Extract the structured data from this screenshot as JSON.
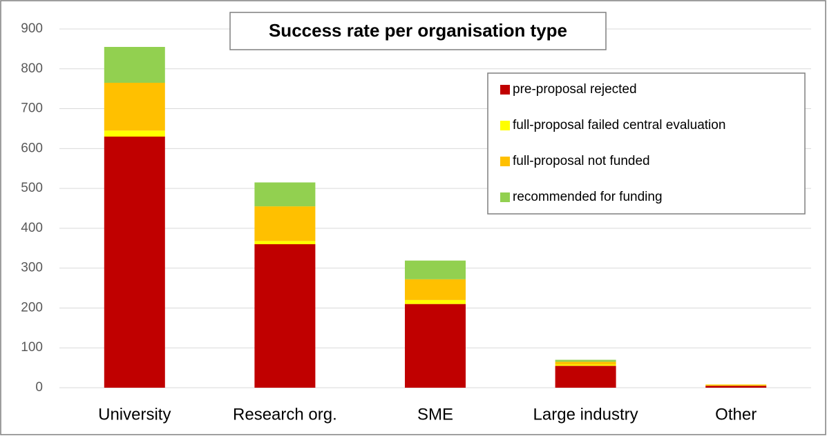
{
  "chart_data": {
    "type": "stacked_bar",
    "title": "Success rate per organisation type",
    "categories": [
      "University",
      "Research org.",
      "SME",
      "Large industry",
      "Other"
    ],
    "series": [
      {
        "name": "pre-proposal rejected",
        "color": "#c00000",
        "values": [
          630,
          360,
          210,
          55,
          5
        ]
      },
      {
        "name": "full-proposal failed central evaluation",
        "color": "#ffff00",
        "values": [
          15,
          8,
          10,
          3,
          1
        ]
      },
      {
        "name": "full-proposal not funded",
        "color": "#ffc000",
        "values": [
          120,
          87,
          52,
          7,
          2
        ]
      },
      {
        "name": "recommended for funding",
        "color": "#92d050",
        "values": [
          90,
          60,
          47,
          5,
          0
        ]
      }
    ],
    "ylim": [
      0,
      900
    ],
    "yticks": [
      0,
      100,
      200,
      300,
      400,
      500,
      600,
      700,
      800,
      900
    ],
    "grid": true
  }
}
